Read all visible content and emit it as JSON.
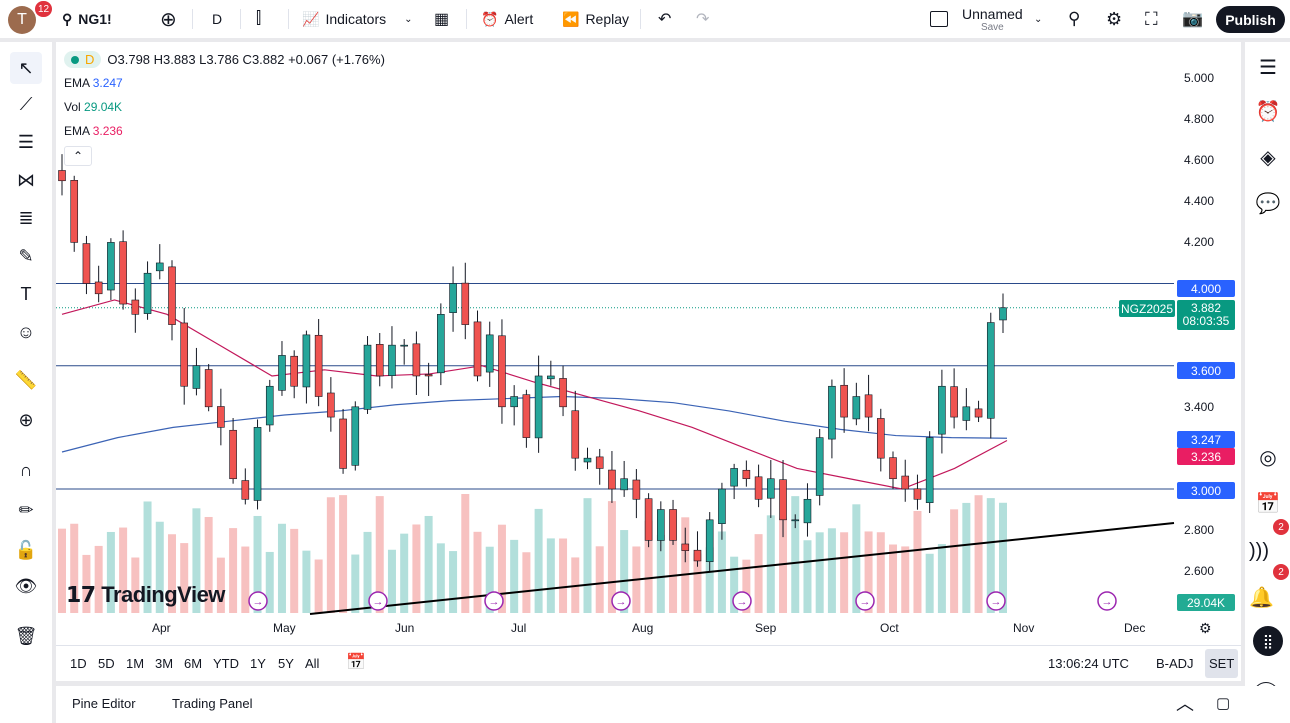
{
  "topbar": {
    "avatar_letter": "T",
    "notifications": "12",
    "symbol": "NG1!",
    "interval": "D",
    "indicators": "Indicators",
    "alert": "Alert",
    "replay": "Replay",
    "layout_name": "Unnamed",
    "layout_save": "Save",
    "publish": "Publish"
  },
  "legend": {
    "interval": "D",
    "ohlc": "O3.798 H3.883 L3.786 C3.882 +0.067 (+1.76%)",
    "ema1_label": "EMA",
    "ema1_value": "3.247",
    "vol_label": "Vol",
    "vol_value": "29.04K",
    "ema2_label": "EMA",
    "ema2_value": "3.236"
  },
  "colors": {
    "up": "#26a69a",
    "down": "#ef5350",
    "up_vol": "#b2dfdb",
    "down_vol": "#f7c1c0",
    "ema_blue": "#2962ff",
    "ema_red": "#e91e63",
    "level": "#2962ff",
    "last_price": "#089981"
  },
  "price_axis": {
    "ticks": [
      "5.000",
      "4.800",
      "4.600",
      "4.400",
      "4.200",
      "3.400",
      "2.800",
      "2.600"
    ],
    "tick_values": [
      5.0,
      4.8,
      4.6,
      4.4,
      4.2,
      3.4,
      2.8,
      2.6
    ],
    "levels": [
      {
        "value": 4.0,
        "label": "4.000"
      },
      {
        "value": 3.6,
        "label": "3.600"
      },
      {
        "value": 3.0,
        "label": "3.000"
      }
    ],
    "last_symbol": "NGZ2025",
    "last_price": "3.882",
    "countdown": "08:03:35",
    "ema1": "3.247",
    "ema2": "3.236",
    "volume": "29.04K"
  },
  "time_axis": {
    "months": [
      "Apr",
      "May",
      "Jun",
      "Jul",
      "Aug",
      "Sep",
      "Oct",
      "Nov",
      "Dec"
    ]
  },
  "chart_data": {
    "type": "candlestick",
    "closes": [
      4.5,
      4.2,
      4.0,
      3.95,
      4.2,
      3.9,
      3.85,
      4.05,
      4.1,
      3.8,
      3.5,
      3.6,
      3.4,
      3.3,
      3.05,
      2.95,
      3.3,
      3.5,
      3.65,
      3.5,
      3.75,
      3.45,
      3.35,
      3.1,
      3.4,
      3.7,
      3.55,
      3.7,
      3.7,
      3.55,
      3.55,
      3.85,
      4.0,
      3.8,
      3.55,
      3.75,
      3.4,
      3.45,
      3.25,
      3.55,
      3.55,
      3.4,
      3.15,
      3.15,
      3.1,
      3.0,
      3.05,
      2.95,
      2.75,
      2.9,
      2.75,
      2.7,
      2.65,
      2.85,
      3.0,
      3.1,
      3.05,
      2.95,
      3.05,
      2.85,
      2.85,
      2.95,
      3.25,
      3.5,
      3.35,
      3.45,
      3.35,
      3.15,
      3.05,
      3.0,
      2.95,
      3.25,
      3.5,
      3.35,
      3.4,
      3.35,
      3.81,
      3.882
    ],
    "ema_long": [
      3.18,
      3.25,
      3.3,
      3.33,
      3.36,
      3.38,
      3.41,
      3.43,
      3.44,
      3.45,
      3.44,
      3.42,
      3.38,
      3.33,
      3.29,
      3.26,
      3.25,
      3.247
    ],
    "ema_short": [
      3.85,
      3.92,
      3.85,
      3.7,
      3.55,
      3.58,
      3.55,
      3.56,
      3.6,
      3.52,
      3.45,
      3.38,
      3.3,
      3.2,
      3.1,
      3.05,
      3.0,
      3.1,
      3.236
    ],
    "trendline": [
      2.35,
      2.83
    ]
  },
  "bottom": {
    "timeframes": [
      "1D",
      "5D",
      "1M",
      "3M",
      "6M",
      "YTD",
      "1Y",
      "5Y",
      "All"
    ],
    "clock": "13:06:24 UTC",
    "badj": "B-ADJ",
    "set": "SET",
    "pine": "Pine Editor",
    "trading": "Trading Panel"
  },
  "watermark": "TradingView",
  "right_badges": {
    "feed": "2",
    "alerts": "2"
  }
}
